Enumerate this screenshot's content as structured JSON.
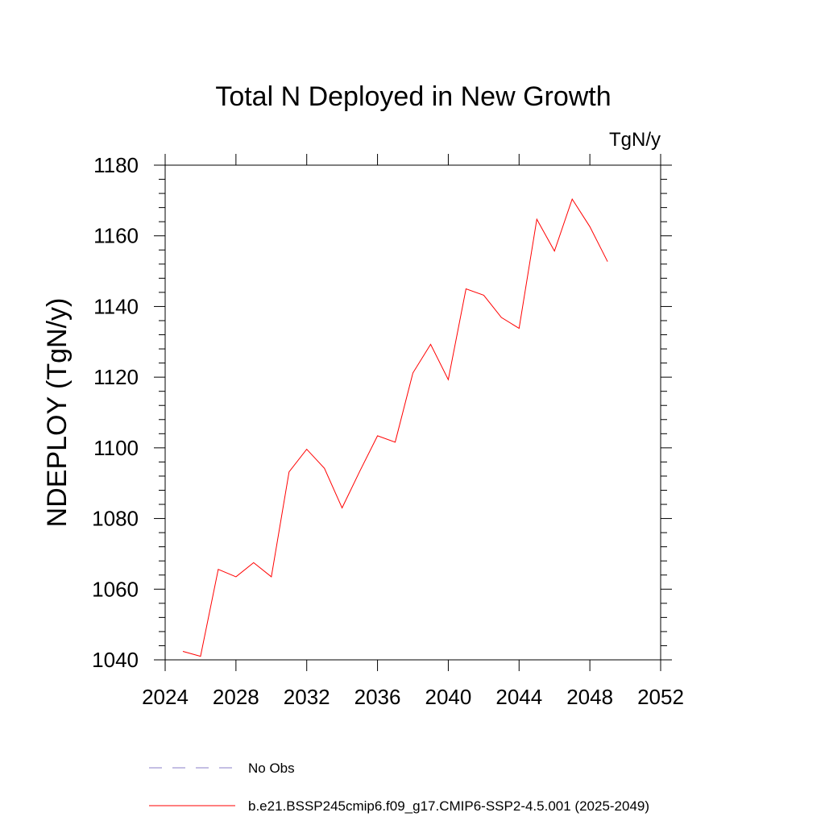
{
  "chart_data": {
    "type": "line",
    "title": "Total N Deployed in New Growth",
    "units": "TgN/y",
    "ylabel": "NDEPLOY  (TgN/y)",
    "xlabel": "",
    "xlim": [
      2024,
      2052
    ],
    "ylim": [
      1040,
      1180
    ],
    "xticks": [
      "2024",
      "2028",
      "2032",
      "2036",
      "2040",
      "2044",
      "2048",
      "2052"
    ],
    "yticks": [
      "1040",
      "1060",
      "1080",
      "1100",
      "1120",
      "1140",
      "1160",
      "1180"
    ],
    "grid": false,
    "legend_position": "bottom",
    "series": [
      {
        "name": "b.e21.BSSP245cmip6.f09_g17.CMIP6-SSP2-4.5.001 (2025-2049)",
        "color": "#ff0000",
        "style": "solid",
        "x": [
          2025,
          2026,
          2027,
          2028,
          2029,
          2030,
          2031,
          2032,
          2033,
          2034,
          2035,
          2036,
          2037,
          2038,
          2039,
          2040,
          2041,
          2042,
          2043,
          2044,
          2045,
          2046,
          2047,
          2048,
          2049
        ],
        "y": [
          1042.4,
          1041.0,
          1065.6,
          1063.5,
          1067.5,
          1063.5,
          1093.2,
          1099.6,
          1094.2,
          1083.0,
          1093.4,
          1103.4,
          1101.6,
          1121.2,
          1129.3,
          1119.3,
          1145.0,
          1143.2,
          1136.9,
          1133.8,
          1164.7,
          1155.7,
          1170.4,
          1162.6,
          1152.7
        ]
      }
    ],
    "legend": [
      {
        "label": "No Obs",
        "color": "#8a7fc8",
        "style": "dashed"
      },
      {
        "label": "b.e21.BSSP245cmip6.f09_g17.CMIP6-SSP2-4.5.001 (2025-2049)",
        "color": "#ff0000",
        "style": "solid"
      }
    ]
  }
}
